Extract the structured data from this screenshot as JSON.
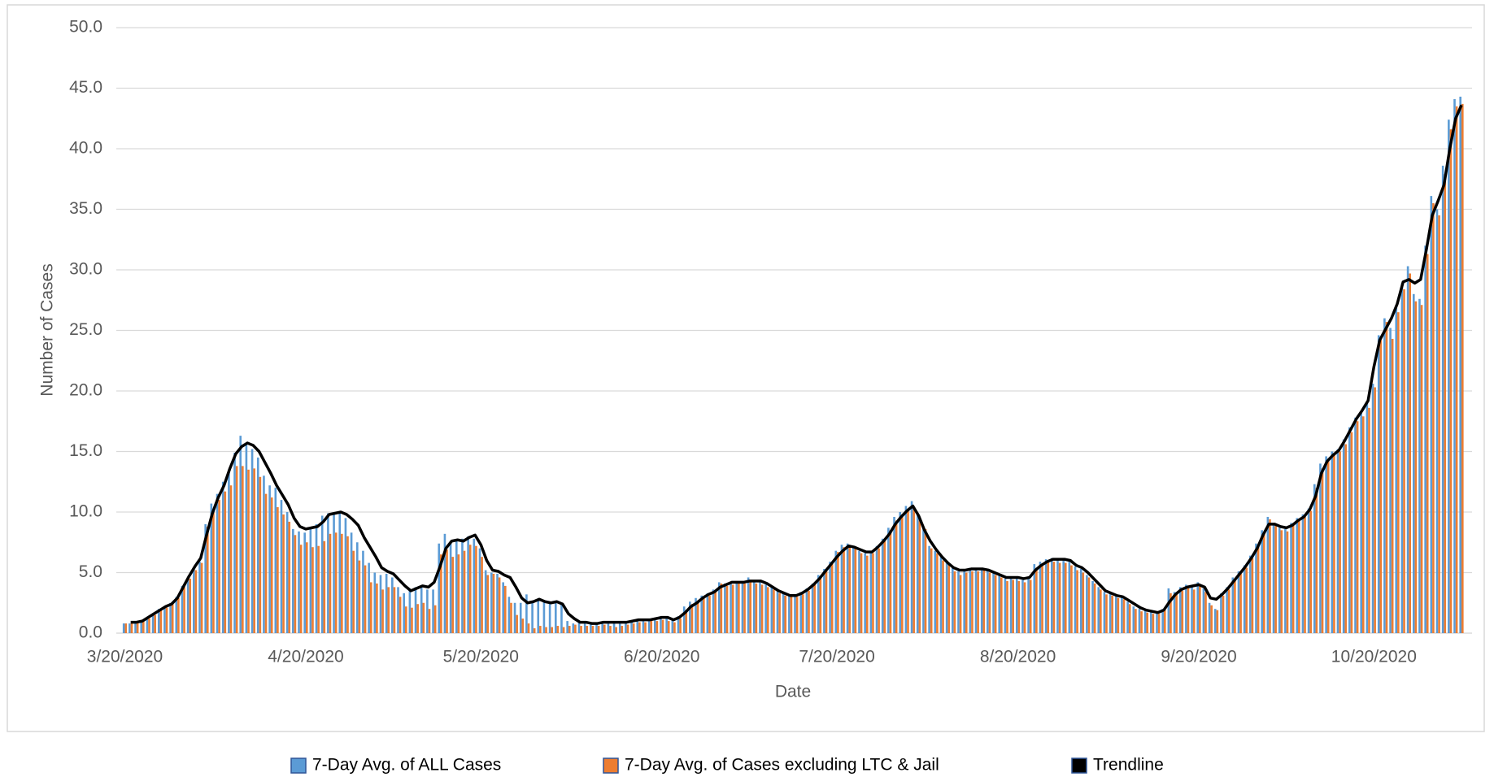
{
  "chart_data": {
    "type": "bar",
    "y_label": "Number of Cases",
    "x_label": "Date",
    "categories": [
      "3/20/2020",
      null,
      null,
      null,
      null,
      null,
      null,
      null,
      null,
      null,
      null,
      null,
      null,
      null,
      null,
      null,
      null,
      null,
      null,
      null,
      null,
      null,
      null,
      null,
      null,
      null,
      null,
      null,
      null,
      null,
      null,
      "4/20/2020",
      null,
      null,
      null,
      null,
      null,
      null,
      null,
      null,
      null,
      null,
      null,
      null,
      null,
      null,
      null,
      null,
      null,
      null,
      null,
      null,
      null,
      null,
      null,
      null,
      null,
      null,
      null,
      null,
      null,
      "5/20/2020",
      null,
      null,
      null,
      null,
      null,
      null,
      null,
      null,
      null,
      null,
      null,
      null,
      null,
      null,
      null,
      null,
      null,
      null,
      null,
      null,
      null,
      null,
      null,
      null,
      null,
      null,
      null,
      null,
      null,
      null,
      "6/20/2020",
      null,
      null,
      null,
      null,
      null,
      null,
      null,
      null,
      null,
      null,
      null,
      null,
      null,
      null,
      null,
      null,
      null,
      null,
      null,
      null,
      null,
      null,
      null,
      null,
      null,
      null,
      null,
      null,
      null,
      "7/20/2020",
      null,
      null,
      null,
      null,
      null,
      null,
      null,
      null,
      null,
      null,
      null,
      null,
      null,
      null,
      null,
      null,
      null,
      null,
      null,
      null,
      null,
      null,
      null,
      null,
      null,
      null,
      null,
      null,
      null,
      null,
      "8/20/2020",
      null,
      null,
      null,
      null,
      null,
      null,
      null,
      null,
      null,
      null,
      null,
      null,
      null,
      null,
      null,
      null,
      null,
      null,
      null,
      null,
      null,
      null,
      null,
      null,
      null,
      null,
      null,
      null,
      null,
      null,
      "9/20/2020",
      null,
      null,
      null,
      null,
      null,
      null,
      null,
      null,
      null,
      null,
      null,
      null,
      null,
      null,
      null,
      null,
      null,
      null,
      null,
      null,
      null,
      null,
      null,
      null,
      null,
      null,
      null,
      null,
      null,
      "10/20/2020",
      null,
      null,
      null,
      null,
      null,
      null,
      null,
      null,
      null,
      null,
      null,
      null,
      null,
      null,
      null
    ],
    "series": [
      {
        "name": "7-Day Avg. of ALL Cases",
        "color": "#5b9bd5",
        "values": [
          0.8,
          0.8,
          0.9,
          1.0,
          1.3,
          1.6,
          2.0,
          2.2,
          2.5,
          3.0,
          3.9,
          4.6,
          5.3,
          5.9,
          9.0,
          10.7,
          11.5,
          12.5,
          13.5,
          14.9,
          16.3,
          15.6,
          15.2,
          14.5,
          13.0,
          12.2,
          12.0,
          11.0,
          10.0,
          8.6,
          8.4,
          8.3,
          8.6,
          9.0,
          9.7,
          9.9,
          9.8,
          9.9,
          9.5,
          8.3,
          7.5,
          6.8,
          5.8,
          5.0,
          4.8,
          4.9,
          4.6,
          3.8,
          3.3,
          3.5,
          3.8,
          3.9,
          3.6,
          3.6,
          7.4,
          8.2,
          7.6,
          7.6,
          7.8,
          8.0,
          7.8,
          7.0,
          5.2,
          5.0,
          4.9,
          4.2,
          3.0,
          2.5,
          2.5,
          3.2,
          2.6,
          2.8,
          2.6,
          2.5,
          2.6,
          2.5,
          1.0,
          0.8,
          0.9,
          0.8,
          0.8,
          0.7,
          0.9,
          0.8,
          0.9,
          0.8,
          0.9,
          1.0,
          1.1,
          1.0,
          1.2,
          1.1,
          1.4,
          1.3,
          1.1,
          1.4,
          2.2,
          2.6,
          2.9,
          3.1,
          3.3,
          3.6,
          4.2,
          4.1,
          4.2,
          4.3,
          4.3,
          4.6,
          4.3,
          4.2,
          4.0,
          3.8,
          3.5,
          3.3,
          3.1,
          3.2,
          3.4,
          3.7,
          4.1,
          4.8,
          5.3,
          5.9,
          6.8,
          7.3,
          7.4,
          7.2,
          6.8,
          6.6,
          6.8,
          7.2,
          7.8,
          8.7,
          9.6,
          10.0,
          10.5,
          10.9,
          9.9,
          8.8,
          7.2,
          6.8,
          6.3,
          5.9,
          5.4,
          5.1,
          5.2,
          5.4,
          5.3,
          5.4,
          5.2,
          5.0,
          4.8,
          4.5,
          4.6,
          4.5,
          4.4,
          4.6,
          5.7,
          5.9,
          6.1,
          6.2,
          6.0,
          6.1,
          5.9,
          5.5,
          5.3,
          4.8,
          4.3,
          3.8,
          3.4,
          3.3,
          3.1,
          3.0,
          2.6,
          2.2,
          2.0,
          1.9,
          1.8,
          1.7,
          2.0,
          3.7,
          3.4,
          3.8,
          4.0,
          3.9,
          4.2,
          3.7,
          2.5,
          2.0,
          3.3,
          3.8,
          4.6,
          5.1,
          5.6,
          6.4,
          7.4,
          8.5,
          9.6,
          9.1,
          8.7,
          8.6,
          9.1,
          9.5,
          9.8,
          10.3,
          12.3,
          14.0,
          14.6,
          15.0,
          15.2,
          16.0,
          17.0,
          17.8,
          18.3,
          19.0,
          20.6,
          24.6,
          26.0,
          25.2,
          27.0,
          28.9,
          30.3,
          28.0,
          27.6,
          32.0,
          36.1,
          35.0,
          38.6,
          42.4,
          44.1,
          44.3
        ]
      },
      {
        "name": "7-Day Avg. of Cases excluding LTC & Jail",
        "color": "#ed7d31",
        "values": [
          0.8,
          0.8,
          0.9,
          1.0,
          1.2,
          1.5,
          1.9,
          2.1,
          2.4,
          2.9,
          3.8,
          4.5,
          5.2,
          5.8,
          8.8,
          10.2,
          11.0,
          11.7,
          12.2,
          13.8,
          13.8,
          13.5,
          13.6,
          12.9,
          11.5,
          11.2,
          10.4,
          9.8,
          9.2,
          8.1,
          7.3,
          7.5,
          7.1,
          7.2,
          7.6,
          8.2,
          8.3,
          8.2,
          8.0,
          6.8,
          6.0,
          5.6,
          4.2,
          4.1,
          3.6,
          3.8,
          3.8,
          3.0,
          2.2,
          2.1,
          2.4,
          2.5,
          2.0,
          2.3,
          6.5,
          6.9,
          6.3,
          6.5,
          6.8,
          7.3,
          7.2,
          6.3,
          4.8,
          4.9,
          4.6,
          3.9,
          2.5,
          1.5,
          1.2,
          0.8,
          0.4,
          0.6,
          0.5,
          0.5,
          0.6,
          0.5,
          0.6,
          0.7,
          0.6,
          0.6,
          0.6,
          0.6,
          0.7,
          0.6,
          0.5,
          0.6,
          0.7,
          0.8,
          0.9,
          0.9,
          1.0,
          1.0,
          1.1,
          1.0,
          0.9,
          1.2,
          1.9,
          2.4,
          2.7,
          2.9,
          3.1,
          3.4,
          4.1,
          3.9,
          4.0,
          4.1,
          4.1,
          4.4,
          4.1,
          4.0,
          3.8,
          3.6,
          3.3,
          3.1,
          3.0,
          3.0,
          3.2,
          3.5,
          4.0,
          4.6,
          5.1,
          5.7,
          6.7,
          7.1,
          7.2,
          7.0,
          6.6,
          6.4,
          6.6,
          7.0,
          7.6,
          8.5,
          9.3,
          9.8,
          10.2,
          10.4,
          9.5,
          8.6,
          7.0,
          6.6,
          6.0,
          5.7,
          5.1,
          4.8,
          5.0,
          5.1,
          5.1,
          5.2,
          5.0,
          4.8,
          4.6,
          4.3,
          4.4,
          4.3,
          4.2,
          4.4,
          5.4,
          5.6,
          5.9,
          5.9,
          5.8,
          5.8,
          5.6,
          5.2,
          5.0,
          4.6,
          4.1,
          3.6,
          3.2,
          3.1,
          2.9,
          2.8,
          2.4,
          2.0,
          1.8,
          1.7,
          1.6,
          1.6,
          1.9,
          3.3,
          3.2,
          3.5,
          3.7,
          3.6,
          3.9,
          3.4,
          2.3,
          1.9,
          3.1,
          3.6,
          4.4,
          4.9,
          5.4,
          6.2,
          7.2,
          8.3,
          9.4,
          8.9,
          8.5,
          8.4,
          8.9,
          9.3,
          9.6,
          10.1,
          12.0,
          13.6,
          14.4,
          14.7,
          15.0,
          15.6,
          16.6,
          17.5,
          17.9,
          18.6,
          20.3,
          24.2,
          25.7,
          24.3,
          26.5,
          28.4,
          29.7,
          27.4,
          27.1,
          31.3,
          35.5,
          34.5,
          37.9,
          41.6,
          43.5,
          43.7
        ]
      },
      {
        "name": "Trendline",
        "type": "line",
        "color": "#000000",
        "values": [
          null,
          0.9,
          0.9,
          1.0,
          1.3,
          1.6,
          1.9,
          2.2,
          2.4,
          2.9,
          3.8,
          4.7,
          5.5,
          6.2,
          8.1,
          9.9,
          11.2,
          12.2,
          13.6,
          14.8,
          15.4,
          15.7,
          15.5,
          15.0,
          14.1,
          13.2,
          12.2,
          11.4,
          10.6,
          9.5,
          8.8,
          8.6,
          8.7,
          8.8,
          9.2,
          9.8,
          9.9,
          10.0,
          9.8,
          9.4,
          8.9,
          7.9,
          7.1,
          6.3,
          5.4,
          5.1,
          4.9,
          4.4,
          3.9,
          3.5,
          3.7,
          3.9,
          3.8,
          4.2,
          5.5,
          7.0,
          7.6,
          7.7,
          7.6,
          7.9,
          8.1,
          7.3,
          6.0,
          5.2,
          5.1,
          4.8,
          4.6,
          3.8,
          2.9,
          2.5,
          2.6,
          2.8,
          2.6,
          2.5,
          2.6,
          2.4,
          1.6,
          1.2,
          0.9,
          0.9,
          0.8,
          0.8,
          0.9,
          0.9,
          0.9,
          0.9,
          0.9,
          1.0,
          1.1,
          1.1,
          1.1,
          1.2,
          1.3,
          1.3,
          1.1,
          1.3,
          1.7,
          2.2,
          2.5,
          2.9,
          3.2,
          3.4,
          3.8,
          4.0,
          4.2,
          4.2,
          4.2,
          4.3,
          4.3,
          4.3,
          4.1,
          3.8,
          3.5,
          3.3,
          3.1,
          3.1,
          3.3,
          3.6,
          4.0,
          4.5,
          5.1,
          5.7,
          6.3,
          6.8,
          7.2,
          7.1,
          6.9,
          6.7,
          6.7,
          7.1,
          7.6,
          8.2,
          9.0,
          9.6,
          10.1,
          10.5,
          9.7,
          8.5,
          7.6,
          6.9,
          6.3,
          5.8,
          5.4,
          5.2,
          5.2,
          5.3,
          5.3,
          5.3,
          5.2,
          5.0,
          4.8,
          4.6,
          4.6,
          4.6,
          4.5,
          4.6,
          5.2,
          5.6,
          5.9,
          6.1,
          6.1,
          6.1,
          6.0,
          5.6,
          5.4,
          5.0,
          4.5,
          4.0,
          3.5,
          3.3,
          3.1,
          3.0,
          2.7,
          2.4,
          2.1,
          1.9,
          1.8,
          1.7,
          1.9,
          2.6,
          3.2,
          3.6,
          3.8,
          3.9,
          4.0,
          3.8,
          2.9,
          2.8,
          3.2,
          3.7,
          4.3,
          4.9,
          5.5,
          6.2,
          7.0,
          8.1,
          9.0,
          9.0,
          8.8,
          8.7,
          8.9,
          9.3,
          9.6,
          10.2,
          11.3,
          13.2,
          14.2,
          14.7,
          15.1,
          15.9,
          16.8,
          17.7,
          18.4,
          19.2,
          22.0,
          24.2,
          25.1,
          26.0,
          27.2,
          29.0,
          29.2,
          28.9,
          29.2,
          31.7,
          34.5,
          35.7,
          37.0,
          40.0,
          42.5,
          43.6
        ]
      }
    ],
    "ylim": [
      0,
      50
    ],
    "yticks": [
      {
        "value": 0,
        "label": "0.0"
      },
      {
        "value": 5,
        "label": "5.0"
      },
      {
        "value": 10,
        "label": "10.0"
      },
      {
        "value": 15,
        "label": "15.0"
      },
      {
        "value": 20,
        "label": "20.0"
      },
      {
        "value": 25,
        "label": "25.0"
      },
      {
        "value": 30,
        "label": "30.0"
      },
      {
        "value": 35,
        "label": "35.0"
      },
      {
        "value": 40,
        "label": "40.0"
      },
      {
        "value": 45,
        "label": "45.0"
      },
      {
        "value": 50,
        "label": "50.0"
      }
    ],
    "grid": true,
    "legend": "bottom"
  }
}
